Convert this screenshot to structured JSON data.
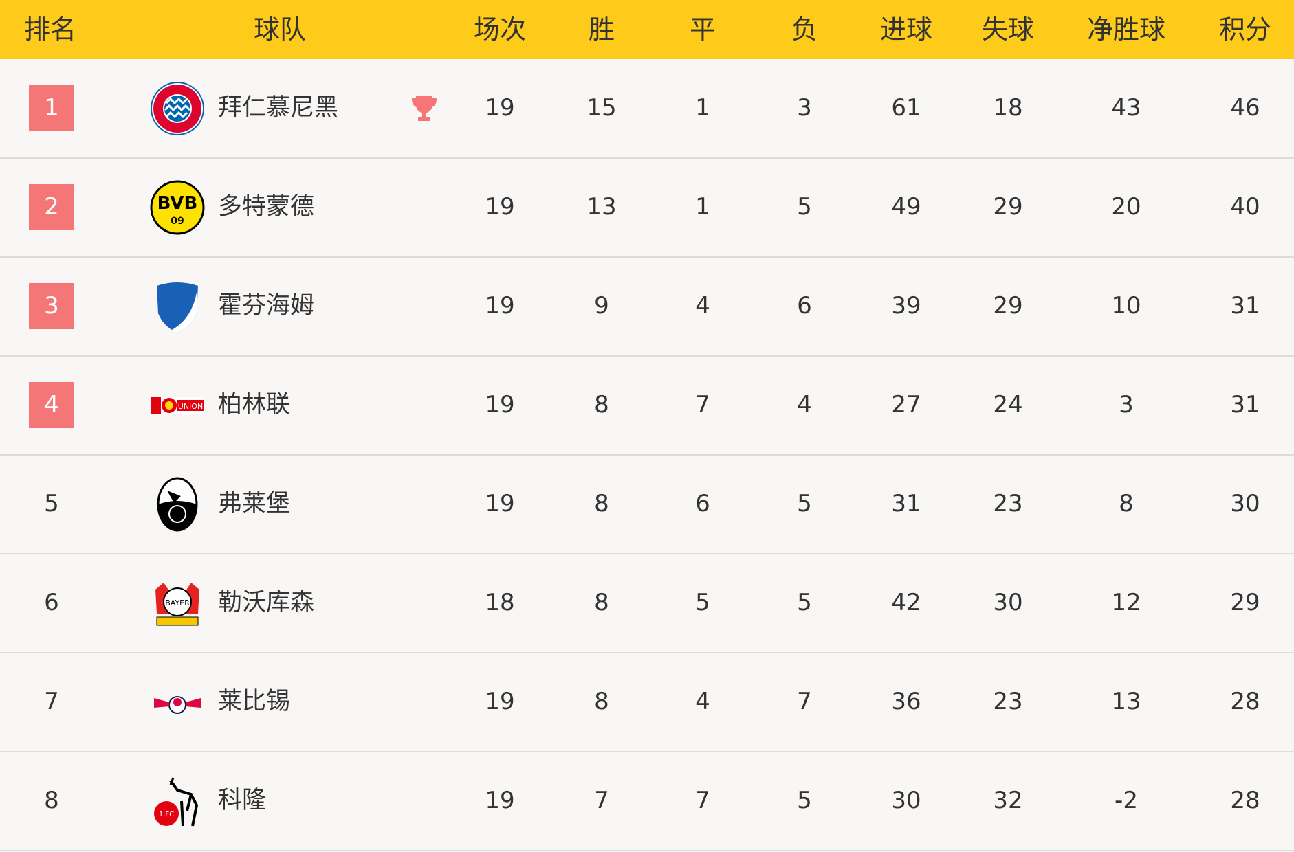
{
  "colors": {
    "header": "#fecb1a",
    "rank_highlight": "#f47677",
    "trophy": "#f47677"
  },
  "headers": [
    "排名",
    "球队",
    "场次",
    "胜",
    "平",
    "负",
    "进球",
    "失球",
    "净胜球",
    "积分"
  ],
  "rows": [
    {
      "rank": "1",
      "team": "拜仁慕尼黑",
      "logo": "bayern-logo",
      "highlight": true,
      "trophy": true,
      "played": "19",
      "won": "15",
      "drawn": "1",
      "lost": "3",
      "gf": "61",
      "ga": "18",
      "gd": "43",
      "pts": "46"
    },
    {
      "rank": "2",
      "team": "多特蒙德",
      "logo": "dortmund-logo",
      "highlight": true,
      "played": "19",
      "won": "13",
      "drawn": "1",
      "lost": "5",
      "gf": "49",
      "ga": "29",
      "gd": "20",
      "pts": "40"
    },
    {
      "rank": "3",
      "team": "霍芬海姆",
      "logo": "hoffenheim-logo",
      "highlight": true,
      "played": "19",
      "won": "9",
      "drawn": "4",
      "lost": "6",
      "gf": "39",
      "ga": "29",
      "gd": "10",
      "pts": "31"
    },
    {
      "rank": "4",
      "team": "柏林联",
      "logo": "union-berlin-logo",
      "highlight": true,
      "played": "19",
      "won": "8",
      "drawn": "7",
      "lost": "4",
      "gf": "27",
      "ga": "24",
      "gd": "3",
      "pts": "31"
    },
    {
      "rank": "5",
      "team": "弗莱堡",
      "logo": "freiburg-logo",
      "highlight": false,
      "played": "19",
      "won": "8",
      "drawn": "6",
      "lost": "5",
      "gf": "31",
      "ga": "23",
      "gd": "8",
      "pts": "30"
    },
    {
      "rank": "6",
      "team": "勒沃库森",
      "logo": "leverkusen-logo",
      "highlight": false,
      "played": "18",
      "won": "8",
      "drawn": "5",
      "lost": "5",
      "gf": "42",
      "ga": "30",
      "gd": "12",
      "pts": "29"
    },
    {
      "rank": "7",
      "team": "莱比锡",
      "logo": "leipzig-logo",
      "highlight": false,
      "played": "19",
      "won": "8",
      "drawn": "4",
      "lost": "7",
      "gf": "36",
      "ga": "23",
      "gd": "13",
      "pts": "28"
    },
    {
      "rank": "8",
      "team": "科隆",
      "logo": "koln-logo",
      "highlight": false,
      "played": "19",
      "won": "7",
      "drawn": "7",
      "lost": "5",
      "gf": "30",
      "ga": "32",
      "gd": "-2",
      "pts": "28"
    }
  ]
}
